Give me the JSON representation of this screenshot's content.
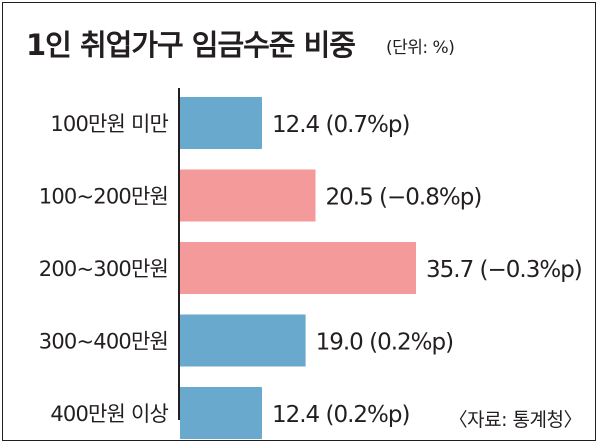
{
  "title": "1인 취업가구 임금수준 비중",
  "unit": "(단위: %)",
  "source": "〈자료: 통계청〉",
  "colors": {
    "increase": "#68a9cd",
    "decrease": "#f59a9a",
    "axis": "#231f20"
  },
  "chart_data": {
    "type": "bar",
    "orientation": "horizontal",
    "title": "1인 취업가구 임금수준 비중",
    "unit": "(단위: %)",
    "categories": [
      "100만원 미만",
      "100~200만원",
      "200~300만원",
      "300~400만원",
      "400만원 이상"
    ],
    "values": [
      12.4,
      20.5,
      35.7,
      19.0,
      12.4
    ],
    "changes": [
      "(0.7%p)",
      "(−0.8%p)",
      "(−0.3%p)",
      "(0.2%p)",
      "(0.2%p)"
    ],
    "value_labels": [
      "12.4",
      "20.5",
      "35.7",
      "19.0",
      "12.4"
    ],
    "bar_colors": [
      "increase",
      "decrease",
      "decrease",
      "increase",
      "increase"
    ],
    "xlim": [
      0,
      40
    ],
    "grid": false,
    "legend": "none"
  }
}
